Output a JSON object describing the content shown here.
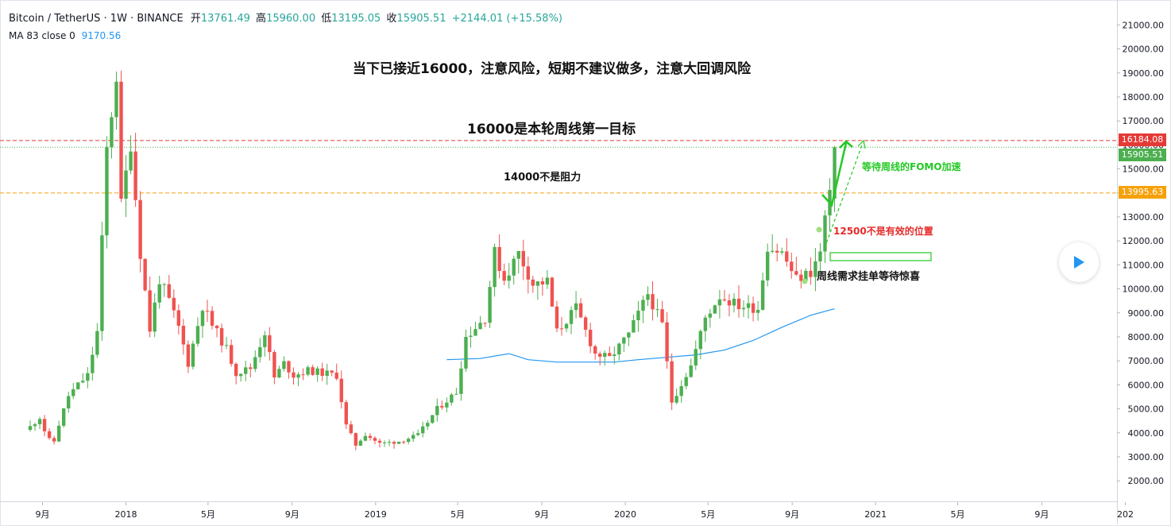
{
  "header": {
    "symbol": "Bitcoin / TetherUS · 1W · BINANCE",
    "open_label": "开",
    "open_value": "13761.49",
    "high_label": "高",
    "high_value": "15960.00",
    "low_label": "低",
    "low_value": "13195.05",
    "close_label": "收",
    "close_value": "15905.51",
    "change": "+2144.01 (+15.58%)"
  },
  "indicator": {
    "label": "MA 83 close 0",
    "value": "9170.56"
  },
  "annotations": {
    "headline": "当下已接近16000，注意风险，短期不建议做多，注意大回调风险",
    "target": "16000是本轮周线第一目标",
    "not_resistance": "14000不是阻力",
    "fomo": "等待周线的FOMO加速",
    "not_valid": "12500不是有效的位置",
    "demand": "周线需求挂单等待惊喜"
  },
  "price_labels": {
    "red_line": "16184.08",
    "current": "15905.51",
    "orange_line": "13995.63"
  },
  "colors": {
    "up": "#4caf50",
    "down": "#ef5350",
    "ma": "#2196f3",
    "red_line": "#e53935",
    "orange_line": "#f7a10a",
    "current": "#4caf50",
    "fomo_arrow": "#22c922"
  },
  "chart_data": {
    "type": "candlestick",
    "title": "Bitcoin / TetherUS · 1W · BINANCE",
    "timeframe": "1W",
    "ylim": [
      1500,
      22000
    ],
    "y_ticks": [
      2000,
      3000,
      4000,
      5000,
      6000,
      7000,
      8000,
      9000,
      10000,
      11000,
      12000,
      13000,
      14000,
      15000,
      16000,
      17000,
      18000,
      19000,
      20000,
      21000
    ],
    "y_tick_labels": [
      "2000.00",
      "3000.00",
      "4000.00",
      "5000.00",
      "6000.00",
      "7000.00",
      "8000.00",
      "9000.00",
      "10000.00",
      "11000.00",
      "12000.00",
      "13000.00",
      "14000.00",
      "15000.00",
      "16000.00",
      "17000.00",
      "18000.00",
      "19000.00",
      "20000.00",
      "21000.00"
    ],
    "x_ticks": [
      {
        "label": "9月",
        "date": "2017-09"
      },
      {
        "label": "2018",
        "date": "2018-01"
      },
      {
        "label": "5月",
        "date": "2018-05"
      },
      {
        "label": "9月",
        "date": "2018-09"
      },
      {
        "label": "2019",
        "date": "2019-01"
      },
      {
        "label": "5月",
        "date": "2019-05"
      },
      {
        "label": "9月",
        "date": "2019-09"
      },
      {
        "label": "2020",
        "date": "2020-01"
      },
      {
        "label": "5月",
        "date": "2020-05"
      },
      {
        "label": "9月",
        "date": "2020-09"
      },
      {
        "label": "2021",
        "date": "2021-01"
      },
      {
        "label": "5月",
        "date": "2021-05"
      },
      {
        "label": "9月",
        "date": "2021-09"
      },
      {
        "label": "202",
        "date": "2022-01"
      }
    ],
    "series": [
      {
        "name": "BTCUSDT weekly close (approx.)",
        "type": "candlestick",
        "points": [
          {
            "date": "2017-08-14",
            "close": 4250
          },
          {
            "date": "2017-08-28",
            "close": 4650
          },
          {
            "date": "2017-09-04",
            "close": 4100
          },
          {
            "date": "2017-09-11",
            "close": 3700
          },
          {
            "date": "2017-09-18",
            "close": 3650
          },
          {
            "date": "2017-09-25",
            "close": 4350
          },
          {
            "date": "2017-10-09",
            "close": 5550
          },
          {
            "date": "2017-10-23",
            "close": 6000
          },
          {
            "date": "2017-11-06",
            "close": 6400
          },
          {
            "date": "2017-11-20",
            "close": 8200
          },
          {
            "date": "2017-12-04",
            "close": 15800
          },
          {
            "date": "2017-12-18",
            "close": 18900
          },
          {
            "date": "2017-12-25",
            "close": 13500
          },
          {
            "date": "2018-01-08",
            "close": 16100
          },
          {
            "date": "2018-01-22",
            "close": 11500
          },
          {
            "date": "2018-02-05",
            "close": 8300
          },
          {
            "date": "2018-02-19",
            "close": 10400
          },
          {
            "date": "2018-03-05",
            "close": 9500
          },
          {
            "date": "2018-03-19",
            "close": 8400
          },
          {
            "date": "2018-04-02",
            "close": 6900
          },
          {
            "date": "2018-04-23",
            "close": 9300
          },
          {
            "date": "2018-05-07",
            "close": 8500
          },
          {
            "date": "2018-05-28",
            "close": 7500
          },
          {
            "date": "2018-06-11",
            "close": 6500
          },
          {
            "date": "2018-07-02",
            "close": 6700
          },
          {
            "date": "2018-07-23",
            "close": 8200
          },
          {
            "date": "2018-08-06",
            "close": 6300
          },
          {
            "date": "2018-08-20",
            "close": 6900
          },
          {
            "date": "2018-09-03",
            "close": 6400
          },
          {
            "date": "2018-09-24",
            "close": 6600
          },
          {
            "date": "2018-10-15",
            "close": 6500
          },
          {
            "date": "2018-11-05",
            "close": 6400
          },
          {
            "date": "2018-11-19",
            "close": 4300
          },
          {
            "date": "2018-12-03",
            "close": 3500
          },
          {
            "date": "2018-12-17",
            "close": 3950
          },
          {
            "date": "2019-01-07",
            "close": 3550
          },
          {
            "date": "2019-02-04",
            "close": 3650
          },
          {
            "date": "2019-03-04",
            "close": 3900
          },
          {
            "date": "2019-04-01",
            "close": 5000
          },
          {
            "date": "2019-04-29",
            "close": 5700
          },
          {
            "date": "2019-05-13",
            "close": 8000
          },
          {
            "date": "2019-06-10",
            "close": 8800
          },
          {
            "date": "2019-06-24",
            "close": 11500
          },
          {
            "date": "2019-07-08",
            "close": 10400
          },
          {
            "date": "2019-07-29",
            "close": 11500
          },
          {
            "date": "2019-08-19",
            "close": 10200
          },
          {
            "date": "2019-09-09",
            "close": 10300
          },
          {
            "date": "2019-09-23",
            "close": 8200
          },
          {
            "date": "2019-10-21",
            "close": 9200
          },
          {
            "date": "2019-11-18",
            "close": 7300
          },
          {
            "date": "2019-12-09",
            "close": 7100
          },
          {
            "date": "2020-01-06",
            "close": 8100
          },
          {
            "date": "2020-02-03",
            "close": 9800
          },
          {
            "date": "2020-02-24",
            "close": 8500
          },
          {
            "date": "2020-03-09",
            "close": 5300
          },
          {
            "date": "2020-04-06",
            "close": 6800
          },
          {
            "date": "2020-04-27",
            "close": 8800
          },
          {
            "date": "2020-05-18",
            "close": 9700
          },
          {
            "date": "2020-06-15",
            "close": 9300
          },
          {
            "date": "2020-07-13",
            "close": 9200
          },
          {
            "date": "2020-07-27",
            "close": 11800
          },
          {
            "date": "2020-08-17",
            "close": 11500
          },
          {
            "date": "2020-09-07",
            "close": 10400
          },
          {
            "date": "2020-09-28",
            "close": 10700
          },
          {
            "date": "2020-10-12",
            "close": 11500
          },
          {
            "date": "2020-10-19",
            "close": 13000
          },
          {
            "date": "2020-10-26",
            "close": 13800
          },
          {
            "date": "2020-11-02",
            "close": 15905.51
          }
        ]
      },
      {
        "name": "MA 83 close 0",
        "type": "line",
        "points": [
          {
            "date": "2019-04-15",
            "value": 7050
          },
          {
            "date": "2019-06-03",
            "value": 7100
          },
          {
            "date": "2019-07-15",
            "value": 7300
          },
          {
            "date": "2019-08-12",
            "value": 7050
          },
          {
            "date": "2019-09-23",
            "value": 6950
          },
          {
            "date": "2019-11-04",
            "value": 6950
          },
          {
            "date": "2019-12-16",
            "value": 6950
          },
          {
            "date": "2020-01-20",
            "value": 7050
          },
          {
            "date": "2020-03-02",
            "value": 7150
          },
          {
            "date": "2020-04-13",
            "value": 7250
          },
          {
            "date": "2020-05-25",
            "value": 7450
          },
          {
            "date": "2020-07-06",
            "value": 7850
          },
          {
            "date": "2020-08-17",
            "value": 8400
          },
          {
            "date": "2020-09-28",
            "value": 8900
          },
          {
            "date": "2020-11-02",
            "value": 9170.56
          }
        ]
      }
    ],
    "horizontal_lines": [
      {
        "value": 16184.08,
        "style": "dashed",
        "color": "#e53935"
      },
      {
        "value": 15905.51,
        "style": "dotted",
        "color": "#4caf50"
      },
      {
        "value": 13995.63,
        "style": "dashed",
        "color": "#f7a10a"
      }
    ],
    "legend": "none",
    "grid": false
  }
}
